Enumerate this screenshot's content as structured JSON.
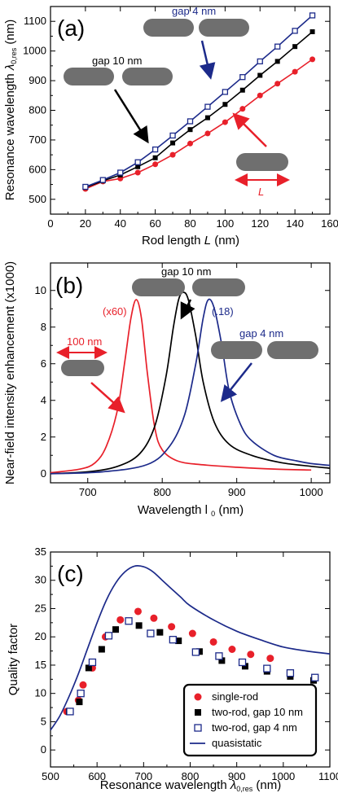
{
  "colors": {
    "red": "#e8202a",
    "blue": "#1c2a8a",
    "black": "#000000",
    "rod": "#6f6f6f"
  },
  "chart_data": [
    {
      "type": "line",
      "panel_label": "(a)",
      "xlabel": "Rod length L (nm)",
      "ylabel": "Resonance wavelength λ0,res (nm)",
      "xlim": [
        0,
        160
      ],
      "ylim": [
        450,
        1150
      ],
      "xticks": [
        "0",
        "20",
        "40",
        "60",
        "80",
        "100",
        "120",
        "140",
        "160"
      ],
      "yticks": [
        "500",
        "600",
        "700",
        "800",
        "900",
        "1000",
        "1100"
      ],
      "series": [
        {
          "color": "#e8202a",
          "marker": "circle",
          "x": [
            20,
            30,
            40,
            50,
            60,
            70,
            80,
            90,
            100,
            110,
            120,
            130,
            140,
            150
          ],
          "y": [
            535,
            560,
            570,
            590,
            618,
            650,
            688,
            722,
            760,
            805,
            850,
            890,
            930,
            972
          ]
        },
        {
          "color": "#000000",
          "marker": "square",
          "x": [
            20,
            30,
            40,
            50,
            60,
            70,
            80,
            90,
            100,
            110,
            120,
            130,
            140,
            150
          ],
          "y": [
            540,
            562,
            582,
            610,
            640,
            690,
            735,
            775,
            820,
            868,
            918,
            965,
            1015,
            1065
          ]
        },
        {
          "color": "#1c2a8a",
          "marker": "open-square",
          "x": [
            20,
            30,
            40,
            50,
            60,
            70,
            80,
            90,
            100,
            110,
            120,
            130,
            140,
            150
          ],
          "y": [
            542,
            565,
            590,
            625,
            668,
            715,
            763,
            812,
            862,
            912,
            965,
            1015,
            1068,
            1120
          ]
        }
      ],
      "annotations": {
        "gap4": "gap 4 nm",
        "gap10": "gap 10 nm",
        "L": "L"
      }
    },
    {
      "type": "line",
      "panel_label": "(b)",
      "xlabel": "Wavelength l 0 (nm)",
      "ylabel": "Near-field intensity enhancement (x1000)",
      "xlim": [
        650,
        1025
      ],
      "ylim": [
        -0.5,
        11.5
      ],
      "xticks": [
        "700",
        "800",
        "900",
        "1000"
      ],
      "yticks": [
        "0",
        "2",
        "4",
        "6",
        "8",
        "10"
      ],
      "series": [
        {
          "color": "#e8202a",
          "x": [
            650,
            690,
            710,
            725,
            740,
            750,
            758,
            765,
            772,
            780,
            790,
            800,
            820,
            850,
            900,
            950,
            1000
          ],
          "y": [
            0.05,
            0.25,
            0.6,
            1.5,
            3.5,
            6.2,
            8.5,
            9.5,
            8.5,
            5.5,
            2.5,
            1.3,
            0.7,
            0.5,
            0.35,
            0.25,
            0.2
          ]
        },
        {
          "color": "#000000",
          "x": [
            650,
            700,
            740,
            770,
            790,
            805,
            815,
            822,
            828,
            835,
            845,
            855,
            870,
            890,
            920,
            960,
            1000,
            1025
          ],
          "y": [
            0.0,
            0.1,
            0.4,
            1.1,
            2.6,
            5.3,
            8.0,
            9.5,
            9.9,
            9.5,
            7.5,
            5.0,
            2.8,
            1.6,
            1.0,
            0.6,
            0.4,
            0.3
          ]
        },
        {
          "color": "#1c2a8a",
          "x": [
            650,
            720,
            780,
            810,
            830,
            845,
            855,
            862,
            870,
            880,
            890,
            905,
            920,
            950,
            980,
            1000,
            1025
          ],
          "y": [
            0.0,
            0.1,
            0.5,
            1.5,
            3.2,
            6.0,
            8.5,
            9.5,
            9.0,
            7.0,
            4.5,
            2.7,
            1.8,
            1.0,
            0.7,
            0.55,
            0.45
          ]
        }
      ],
      "annotations": {
        "x60": "(x60)",
        "x18": "(.18)",
        "gap10": "gap 10 nm",
        "gap4": "gap 4 nm",
        "scale": "100 nm"
      }
    },
    {
      "type": "scatter",
      "panel_label": "(c)",
      "xlabel": "Resonance wavelength λ0,res (nm)",
      "ylabel": "Quality factor",
      "xlim": [
        500,
        1100
      ],
      "ylim": [
        -3,
        35
      ],
      "xticks": [
        "500",
        "600",
        "700",
        "800",
        "900",
        "1000",
        "1100"
      ],
      "yticks": [
        "0",
        "5",
        "10",
        "15",
        "20",
        "25",
        "30",
        "35"
      ],
      "series": [
        {
          "name": "single-rod",
          "color": "#e8202a",
          "marker": "circle",
          "x": [
            535,
            560,
            570,
            590,
            618,
            650,
            688,
            722,
            760,
            805,
            850,
            890,
            930,
            972
          ],
          "y": [
            6.8,
            8.8,
            11.5,
            14.5,
            20.0,
            23.0,
            24.5,
            23.3,
            21.8,
            20.6,
            19.1,
            17.8,
            16.9,
            16.2
          ]
        },
        {
          "name": "two-rod, gap 10 nm",
          "color": "#000000",
          "marker": "square",
          "x": [
            540,
            562,
            582,
            610,
            640,
            690,
            735,
            775,
            820,
            868,
            918,
            965,
            1015,
            1065
          ],
          "y": [
            6.8,
            8.5,
            14.5,
            17.8,
            21.3,
            22.0,
            20.8,
            19.3,
            17.4,
            15.8,
            14.8,
            13.9,
            13.0,
            12.3
          ]
        },
        {
          "name": "two-rod, gap 4 nm",
          "color": "#1c2a8a",
          "marker": "open-square",
          "x": [
            542,
            565,
            590,
            625,
            668,
            715,
            763,
            812,
            862,
            912,
            965,
            1015,
            1068
          ],
          "y": [
            6.8,
            10.0,
            15.5,
            20.2,
            22.8,
            20.6,
            19.5,
            17.3,
            16.6,
            15.5,
            14.4,
            13.6,
            12.8
          ]
        },
        {
          "name": "quasistatic",
          "color": "#1c2a8a",
          "marker": "line",
          "x": [
            500,
            520,
            540,
            560,
            580,
            600,
            620,
            640,
            660,
            680,
            700,
            720,
            740,
            760,
            780,
            800,
            850,
            900,
            950,
            1000,
            1050,
            1100
          ],
          "y": [
            3.5,
            6.0,
            9.5,
            13.5,
            18.0,
            22.5,
            26.5,
            29.5,
            31.5,
            32.5,
            32.4,
            31.5,
            30.0,
            28.5,
            27.0,
            25.5,
            23.0,
            21.0,
            19.5,
            18.2,
            17.5,
            17.0
          ]
        }
      ]
    }
  ]
}
